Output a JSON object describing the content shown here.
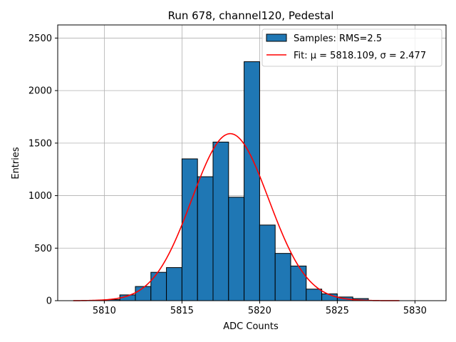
{
  "chart_data": {
    "type": "histogram",
    "title": "Run 678, channel120, Pedestal",
    "xlabel": "ADC Counts",
    "ylabel": "Entries",
    "xlim": [
      5807,
      5832
    ],
    "ylim": [
      0,
      2625
    ],
    "xticks": [
      5810,
      5815,
      5820,
      5825,
      5830
    ],
    "yticks": [
      0,
      500,
      1000,
      1500,
      2000,
      2500
    ],
    "grid": true,
    "bins": [
      {
        "x0": 5810,
        "x1": 5811,
        "count": 10
      },
      {
        "x0": 5811,
        "x1": 5812,
        "count": 55
      },
      {
        "x0": 5812,
        "x1": 5813,
        "count": 135
      },
      {
        "x0": 5813,
        "x1": 5814,
        "count": 270
      },
      {
        "x0": 5814,
        "x1": 5815,
        "count": 315
      },
      {
        "x0": 5815,
        "x1": 5816,
        "count": 1350
      },
      {
        "x0": 5816,
        "x1": 5817,
        "count": 1180
      },
      {
        "x0": 5817,
        "x1": 5818,
        "count": 1510
      },
      {
        "x0": 5818,
        "x1": 5819,
        "count": 985
      },
      {
        "x0": 5819,
        "x1": 5820,
        "count": 2275
      },
      {
        "x0": 5820,
        "x1": 5821,
        "count": 720
      },
      {
        "x0": 5821,
        "x1": 5822,
        "count": 450
      },
      {
        "x0": 5822,
        "x1": 5823,
        "count": 330
      },
      {
        "x0": 5823,
        "x1": 5824,
        "count": 110
      },
      {
        "x0": 5824,
        "x1": 5825,
        "count": 65
      },
      {
        "x0": 5825,
        "x1": 5826,
        "count": 35
      },
      {
        "x0": 5826,
        "x1": 5827,
        "count": 20
      }
    ],
    "fit": {
      "mu": 5818.109,
      "sigma": 2.477,
      "amplitude": 1590,
      "x_range": [
        5808,
        5829
      ]
    },
    "legend": {
      "position": "top-right",
      "entries": [
        {
          "label": "Samples: RMS=2.5",
          "kind": "patch"
        },
        {
          "label": "Fit: μ = 5818.109, σ = 2.477",
          "kind": "line"
        }
      ]
    },
    "colors": {
      "bar_fill": "#1f77b4",
      "bar_edge": "#000000",
      "fit_line": "#ff0000",
      "grid": "#b0b0b0"
    }
  }
}
